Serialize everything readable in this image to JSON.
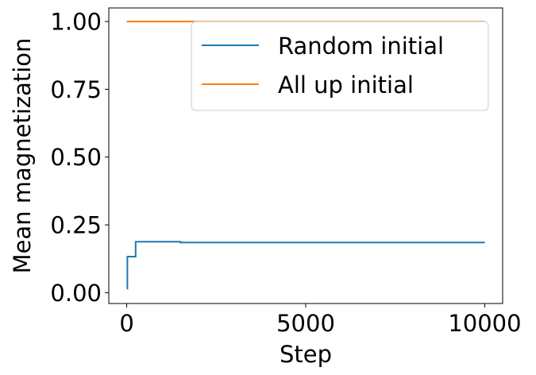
{
  "chart_data": {
    "type": "line",
    "title": "",
    "xlabel": "Step",
    "ylabel": "Mean magnetization",
    "xlim": [
      -500,
      10500
    ],
    "ylim": [
      -0.04,
      1.05
    ],
    "xticks": [
      0,
      5000,
      10000
    ],
    "xtick_labels": [
      "0",
      "5000",
      "10000"
    ],
    "yticks": [
      0.0,
      0.25,
      0.5,
      0.75,
      1.0
    ],
    "ytick_labels": [
      "0.00",
      "0.25",
      "0.50",
      "0.75",
      "1.00"
    ],
    "grid": false,
    "legend_position": "upper right",
    "series": [
      {
        "name": "Random initial",
        "color": "#1f77b4",
        "step": true,
        "x": [
          0,
          20,
          250,
          1500,
          10000
        ],
        "y": [
          0.015,
          0.133,
          0.188,
          0.185,
          0.185
        ]
      },
      {
        "name": "All up initial",
        "color": "#ff7f0e",
        "step": true,
        "x": [
          0,
          10000
        ],
        "y": [
          1.0,
          1.0
        ]
      }
    ]
  }
}
